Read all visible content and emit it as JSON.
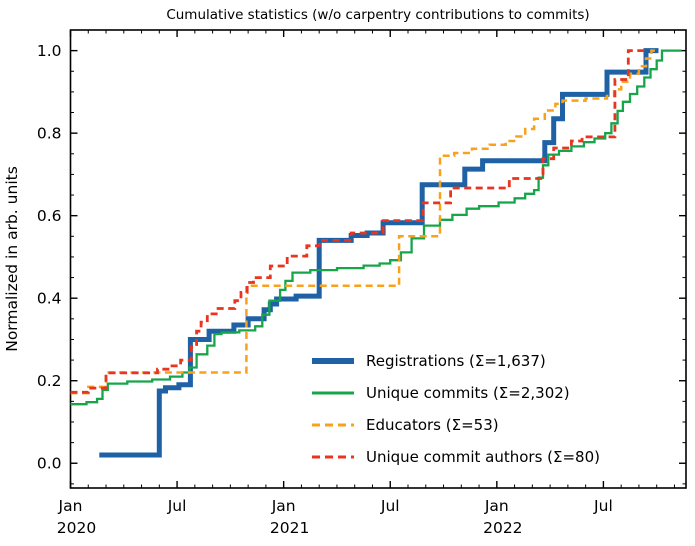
{
  "chart": {
    "title": "Cumulative statistics (w/o carpentry contributions to commits)",
    "ylabel": "Normalized in arb. units"
  },
  "chart_data": {
    "type": "line",
    "title": "Cumulative statistics (w/o carpentry contributions to commits)",
    "xlabel": "",
    "ylabel": "Normalized in arb. units",
    "x_unit": "months since 2020-01",
    "xlim": [
      0,
      34.65
    ],
    "ylim": [
      -0.06,
      1.05
    ],
    "grid": false,
    "legend_position": "lower-right, no frame",
    "x_major_ticks": [
      {
        "month": 0,
        "label": "Jan",
        "year": "2020"
      },
      {
        "month": 6,
        "label": "Jul",
        "year": ""
      },
      {
        "month": 12,
        "label": "Jan",
        "year": "2021"
      },
      {
        "month": 18,
        "label": "Jul",
        "year": ""
      },
      {
        "month": 24,
        "label": "Jan",
        "year": "2022"
      },
      {
        "month": 30,
        "label": "Jul",
        "year": ""
      }
    ],
    "x_minor_tick_every_months": 1,
    "y_major_ticks": [
      "0.0",
      "0.2",
      "0.4",
      "0.6",
      "0.8",
      "1.0"
    ],
    "y_minor_tick_step": 0.05,
    "series": [
      {
        "name": "registrations",
        "label": "Registrations  (Σ=1,637)",
        "sum": 1637,
        "color": "#1e61a5",
        "dash": "solid",
        "width": 5,
        "end": 33.1,
        "points": [
          [
            1.62,
            0.02
          ],
          [
            5.0,
            0.175
          ],
          [
            5.35,
            0.183
          ],
          [
            6.1,
            0.19
          ],
          [
            6.75,
            0.3
          ],
          [
            7.8,
            0.32
          ],
          [
            9.2,
            0.335
          ],
          [
            10.0,
            0.35
          ],
          [
            10.9,
            0.372
          ],
          [
            11.25,
            0.386
          ],
          [
            11.6,
            0.398
          ],
          [
            12.7,
            0.405
          ],
          [
            14.0,
            0.54
          ],
          [
            15.8,
            0.552
          ],
          [
            16.7,
            0.558
          ],
          [
            17.6,
            0.583
          ],
          [
            19.8,
            0.675
          ],
          [
            22.2,
            0.713
          ],
          [
            23.2,
            0.733
          ],
          [
            26.7,
            0.777
          ],
          [
            27.2,
            0.835
          ],
          [
            27.7,
            0.894
          ],
          [
            30.2,
            0.948
          ],
          [
            32.4,
            1.0
          ]
        ]
      },
      {
        "name": "unique_commits",
        "label": "Unique commits (Σ=2,302)",
        "sum": 2302,
        "color": "#17a54a",
        "dash": "solid",
        "width": 2.3,
        "end": 34.4,
        "points": [
          [
            0,
            0.143
          ],
          [
            0.9,
            0.148
          ],
          [
            1.5,
            0.156
          ],
          [
            1.8,
            0.178
          ],
          [
            2.1,
            0.193
          ],
          [
            3.2,
            0.198
          ],
          [
            4.6,
            0.203
          ],
          [
            5.6,
            0.21
          ],
          [
            6.3,
            0.22
          ],
          [
            6.7,
            0.232
          ],
          [
            7.1,
            0.264
          ],
          [
            7.7,
            0.285
          ],
          [
            8.1,
            0.313
          ],
          [
            8.5,
            0.317
          ],
          [
            9.5,
            0.322
          ],
          [
            10.4,
            0.332
          ],
          [
            10.8,
            0.36
          ],
          [
            11.2,
            0.394
          ],
          [
            11.8,
            0.42
          ],
          [
            12.1,
            0.442
          ],
          [
            12.5,
            0.462
          ],
          [
            13.5,
            0.468
          ],
          [
            15.0,
            0.473
          ],
          [
            16.5,
            0.479
          ],
          [
            17.4,
            0.484
          ],
          [
            18.0,
            0.492
          ],
          [
            18.6,
            0.511
          ],
          [
            19.2,
            0.545
          ],
          [
            19.9,
            0.576
          ],
          [
            20.8,
            0.59
          ],
          [
            21.5,
            0.602
          ],
          [
            22.3,
            0.617
          ],
          [
            23.0,
            0.623
          ],
          [
            24.1,
            0.632
          ],
          [
            25.0,
            0.642
          ],
          [
            25.6,
            0.653
          ],
          [
            26.1,
            0.662
          ],
          [
            26.35,
            0.692
          ],
          [
            26.6,
            0.722
          ],
          [
            26.9,
            0.748
          ],
          [
            27.5,
            0.757
          ],
          [
            28.2,
            0.768
          ],
          [
            28.9,
            0.778
          ],
          [
            29.5,
            0.787
          ],
          [
            30.1,
            0.8
          ],
          [
            30.45,
            0.824
          ],
          [
            30.8,
            0.854
          ],
          [
            31.1,
            0.876
          ],
          [
            31.5,
            0.895
          ],
          [
            31.9,
            0.913
          ],
          [
            32.3,
            0.935
          ],
          [
            32.65,
            0.955
          ],
          [
            33.0,
            0.976
          ],
          [
            33.3,
            1.0
          ]
        ]
      },
      {
        "name": "educators",
        "label": "Educators (Σ=53)",
        "sum": 53,
        "color": "#f9a11b",
        "dash": "dashed",
        "width": 2.5,
        "end": 32.9,
        "points": [
          [
            0,
            0.17
          ],
          [
            1.0,
            0.185
          ],
          [
            2.0,
            0.22
          ],
          [
            9.9,
            0.43
          ],
          [
            18.5,
            0.55
          ],
          [
            20.8,
            0.745
          ],
          [
            21.6,
            0.752
          ],
          [
            22.6,
            0.762
          ],
          [
            23.6,
            0.772
          ],
          [
            24.5,
            0.781
          ],
          [
            25.1,
            0.792
          ],
          [
            25.6,
            0.81
          ],
          [
            26.1,
            0.835
          ],
          [
            26.7,
            0.855
          ],
          [
            27.3,
            0.871
          ],
          [
            27.7,
            0.879
          ],
          [
            29.0,
            0.884
          ],
          [
            30.2,
            0.89
          ],
          [
            30.6,
            0.906
          ],
          [
            31.0,
            0.925
          ],
          [
            31.5,
            0.944
          ],
          [
            32.0,
            0.962
          ],
          [
            32.4,
            0.981
          ],
          [
            32.7,
            1.0
          ]
        ]
      },
      {
        "name": "unique_commit_authors",
        "label": "Unique commit authors (Σ=80)",
        "sum": 80,
        "color": "#e9341f",
        "dash": "dashed",
        "width": 2.8,
        "end": 32.5,
        "points": [
          [
            0,
            0.172
          ],
          [
            1.0,
            0.182
          ],
          [
            2.0,
            0.219
          ],
          [
            4.9,
            0.228
          ],
          [
            5.6,
            0.236
          ],
          [
            6.2,
            0.25
          ],
          [
            6.8,
            0.282
          ],
          [
            7.1,
            0.32
          ],
          [
            7.35,
            0.342
          ],
          [
            7.7,
            0.362
          ],
          [
            8.2,
            0.375
          ],
          [
            9.25,
            0.394
          ],
          [
            9.6,
            0.414
          ],
          [
            9.95,
            0.438
          ],
          [
            10.3,
            0.45
          ],
          [
            11.25,
            0.478
          ],
          [
            12.2,
            0.502
          ],
          [
            13.3,
            0.527
          ],
          [
            14.0,
            0.54
          ],
          [
            15.8,
            0.558
          ],
          [
            17.6,
            0.588
          ],
          [
            19.85,
            0.631
          ],
          [
            21.4,
            0.667
          ],
          [
            24.7,
            0.69
          ],
          [
            26.6,
            0.738
          ],
          [
            27.2,
            0.764
          ],
          [
            28.2,
            0.781
          ],
          [
            28.8,
            0.791
          ],
          [
            30.65,
            0.93
          ],
          [
            31.4,
            1.0
          ]
        ]
      }
    ]
  }
}
